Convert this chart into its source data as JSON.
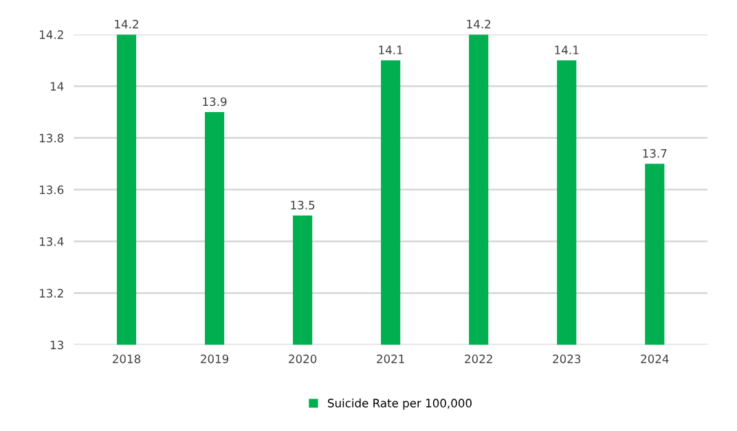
{
  "chart_data": {
    "type": "bar",
    "categories": [
      "2018",
      "2019",
      "2020",
      "2021",
      "2022",
      "2023",
      "2024"
    ],
    "series": [
      {
        "name": "Suicide Rate per 100,000",
        "color": "#00b050",
        "values": [
          14.2,
          13.9,
          13.5,
          14.1,
          14.2,
          14.1,
          13.7
        ]
      }
    ],
    "ylim": [
      13,
      14.2
    ],
    "yticks": [
      13,
      {
        "value": 13.2,
        "label": "13.2"
      },
      {
        "value": 13.4,
        "label": "13.4"
      },
      {
        "value": 13.6,
        "label": "13.6"
      },
      {
        "value": 13.8,
        "label": "13.8"
      },
      14,
      {
        "value": 14.2,
        "label": "14.2"
      }
    ],
    "grid": "y",
    "legend": "bottom",
    "data_labels": true
  }
}
